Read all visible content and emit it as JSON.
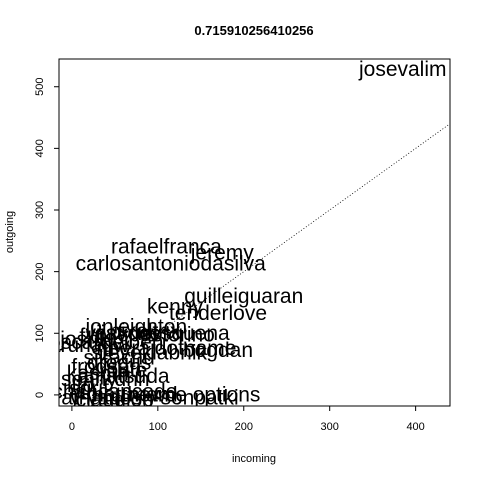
{
  "chart_data": {
    "type": "scatter",
    "title": "0.715910256410256",
    "xlabel": "incoming",
    "ylabel": "outgoing",
    "xlim": [
      -15,
      440
    ],
    "ylim": [
      -18,
      545
    ],
    "x_ticks": [
      0,
      100,
      200,
      300,
      400
    ],
    "y_ticks": [
      0,
      100,
      200,
      300,
      400,
      500
    ],
    "reference_line": {
      "slope": 1,
      "intercept": 0,
      "style": "dotted"
    },
    "grid": false,
    "points": [
      {
        "label": "josevalim",
        "x": 385,
        "y": 528
      },
      {
        "label": "rafaelfranca",
        "x": 110,
        "y": 240
      },
      {
        "label": "jeremy",
        "x": 175,
        "y": 230
      },
      {
        "label": "carlosantoniodasilva",
        "x": 115,
        "y": 212
      },
      {
        "label": "guilleiguaran",
        "x": 200,
        "y": 160
      },
      {
        "label": "kenny",
        "x": 120,
        "y": 143
      },
      {
        "label": "tenderlove",
        "x": 170,
        "y": 132
      },
      {
        "label": "jonleighton",
        "x": 75,
        "y": 110
      },
      {
        "label": "pixeltrix",
        "x": 85,
        "y": 103
      },
      {
        "label": "nesquena",
        "x": 130,
        "y": 100
      },
      {
        "label": "vijaydev",
        "x": 60,
        "y": 100
      },
      {
        "label": "lest",
        "x": 40,
        "y": 100
      },
      {
        "label": "fxn",
        "x": 25,
        "y": 95
      },
      {
        "label": "spastorino",
        "x": 110,
        "y": 97
      },
      {
        "label": "joshk",
        "x": 15,
        "y": 90
      },
      {
        "label": "oscardelben",
        "x": 40,
        "y": 85
      },
      {
        "label": "arunagw",
        "x": 20,
        "y": 80
      },
      {
        "label": "bogdan",
        "x": 170,
        "y": 72
      },
      {
        "label": "neerajdotname",
        "x": 110,
        "y": 75
      },
      {
        "label": "steveklabnik",
        "x": 90,
        "y": 68
      },
      {
        "label": "sikachu",
        "x": 55,
        "y": 60
      },
      {
        "label": "drogus",
        "x": 55,
        "y": 52
      },
      {
        "label": "frodsan",
        "x": 40,
        "y": 45
      },
      {
        "label": "route",
        "x": 60,
        "y": 40
      },
      {
        "label": "amatsuda",
        "x": 60,
        "y": 30
      },
      {
        "label": "dhh",
        "x": 70,
        "y": 25
      },
      {
        "label": "kaspth",
        "x": 30,
        "y": 35
      },
      {
        "label": "senny",
        "x": 20,
        "y": 25
      },
      {
        "label": "lifo",
        "x": 10,
        "y": 15
      },
      {
        "label": "sgrif",
        "x": 20,
        "y": 10
      },
      {
        "label": "chancancode",
        "x": 50,
        "y": 5
      },
      {
        "label": "matthewd",
        "x": 70,
        "y": 0
      },
      {
        "label": "y-yagi",
        "x": 30,
        "y": -5
      },
      {
        "label": "claudiob",
        "x": 50,
        "y": -8
      },
      {
        "label": "prathamesh-sonpatki",
        "x": 80,
        "y": -5
      },
      {
        "label": "mame",
        "x": 100,
        "y": 0
      },
      {
        "label": "options",
        "x": 180,
        "y": 0
      }
    ]
  }
}
